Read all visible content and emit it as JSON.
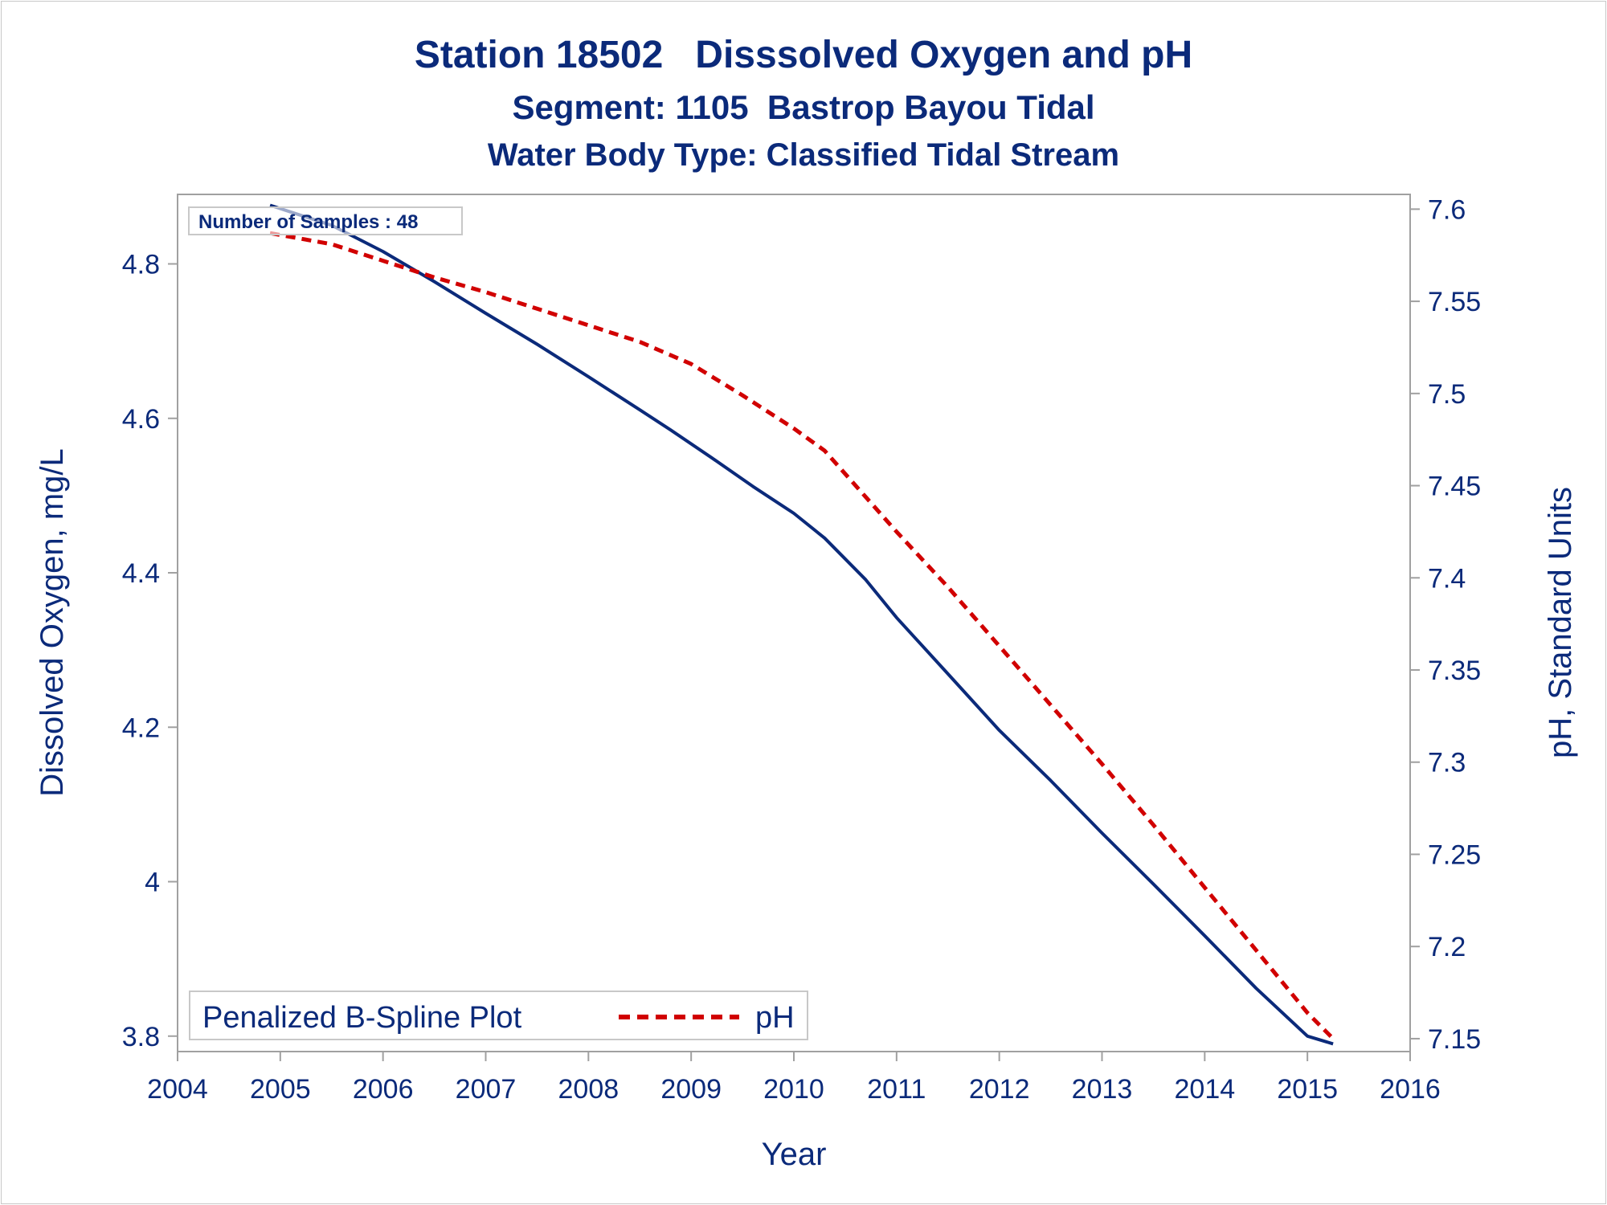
{
  "chart_data": {
    "type": "line",
    "title": "Station 18502   Disssolved Oxygen and pH",
    "subtitle": "Segment: 1105  Bastrop Bayou Tidal",
    "subtitle2": "Water Body Type: Classified Tidal Stream",
    "xlabel": "Year",
    "ylabel": "Dissolved Oxygen, mg/L",
    "y2label": "pH, Standard Units",
    "xlim": [
      2004,
      2016
    ],
    "ylim": [
      3.78,
      4.89
    ],
    "y2lim": [
      7.143,
      7.608
    ],
    "x_ticks": [
      "2004",
      "2005",
      "2006",
      "2007",
      "2008",
      "2009",
      "2010",
      "2011",
      "2012",
      "2013",
      "2014",
      "2015",
      "2016"
    ],
    "y_ticks": [
      "3.8",
      "4",
      "4.2",
      "4.4",
      "4.6",
      "4.8"
    ],
    "y2_ticks": [
      "7.15",
      "7.2",
      "7.25",
      "7.3",
      "7.35",
      "7.4",
      "7.45",
      "7.5",
      "7.55",
      "7.6"
    ],
    "note": "Number of Samples : 48",
    "legend": {
      "title": "Penalized B-Spline Plot",
      "position": "bottom-left",
      "entries": [
        "pH"
      ]
    },
    "colors": {
      "dissolved_oxygen": "#0b2a7a",
      "ph": "#d10000",
      "text": "#0b2a7a"
    },
    "series": [
      {
        "axis": "left",
        "style": "solid",
        "x": [
          2004.9,
          2005.5,
          2006.0,
          2006.5,
          2007.0,
          2007.5,
          2008.0,
          2008.5,
          2008.8,
          2009.2,
          2009.6,
          2010.0,
          2010.3,
          2010.7,
          2011.0,
          2011.5,
          2012.0,
          2012.5,
          2013.0,
          2013.5,
          2014.0,
          2014.5,
          2015.0,
          2015.25
        ],
        "values": [
          4.876,
          4.85,
          4.816,
          4.777,
          4.736,
          4.696,
          4.654,
          4.611,
          4.585,
          4.549,
          4.512,
          4.477,
          4.445,
          4.391,
          4.342,
          4.269,
          4.196,
          4.131,
          4.063,
          3.997,
          3.93,
          3.862,
          3.8,
          3.79
        ]
      },
      {
        "name": "pH",
        "axis": "right",
        "style": "dashed",
        "x": [
          2004.9,
          2005.5,
          2006.0,
          2006.5,
          2007.0,
          2007.5,
          2008.0,
          2008.5,
          2009.0,
          2009.5,
          2010.0,
          2010.3,
          2011.0,
          2011.5,
          2012.0,
          2012.5,
          2013.0,
          2013.5,
          2014.0,
          2014.5,
          2015.0,
          2015.25
        ],
        "values": [
          7.587,
          7.581,
          7.572,
          7.563,
          7.555,
          7.546,
          7.537,
          7.528,
          7.516,
          7.499,
          7.481,
          7.469,
          7.425,
          7.395,
          7.363,
          7.331,
          7.299,
          7.266,
          7.232,
          7.198,
          7.164,
          7.15
        ]
      }
    ]
  }
}
